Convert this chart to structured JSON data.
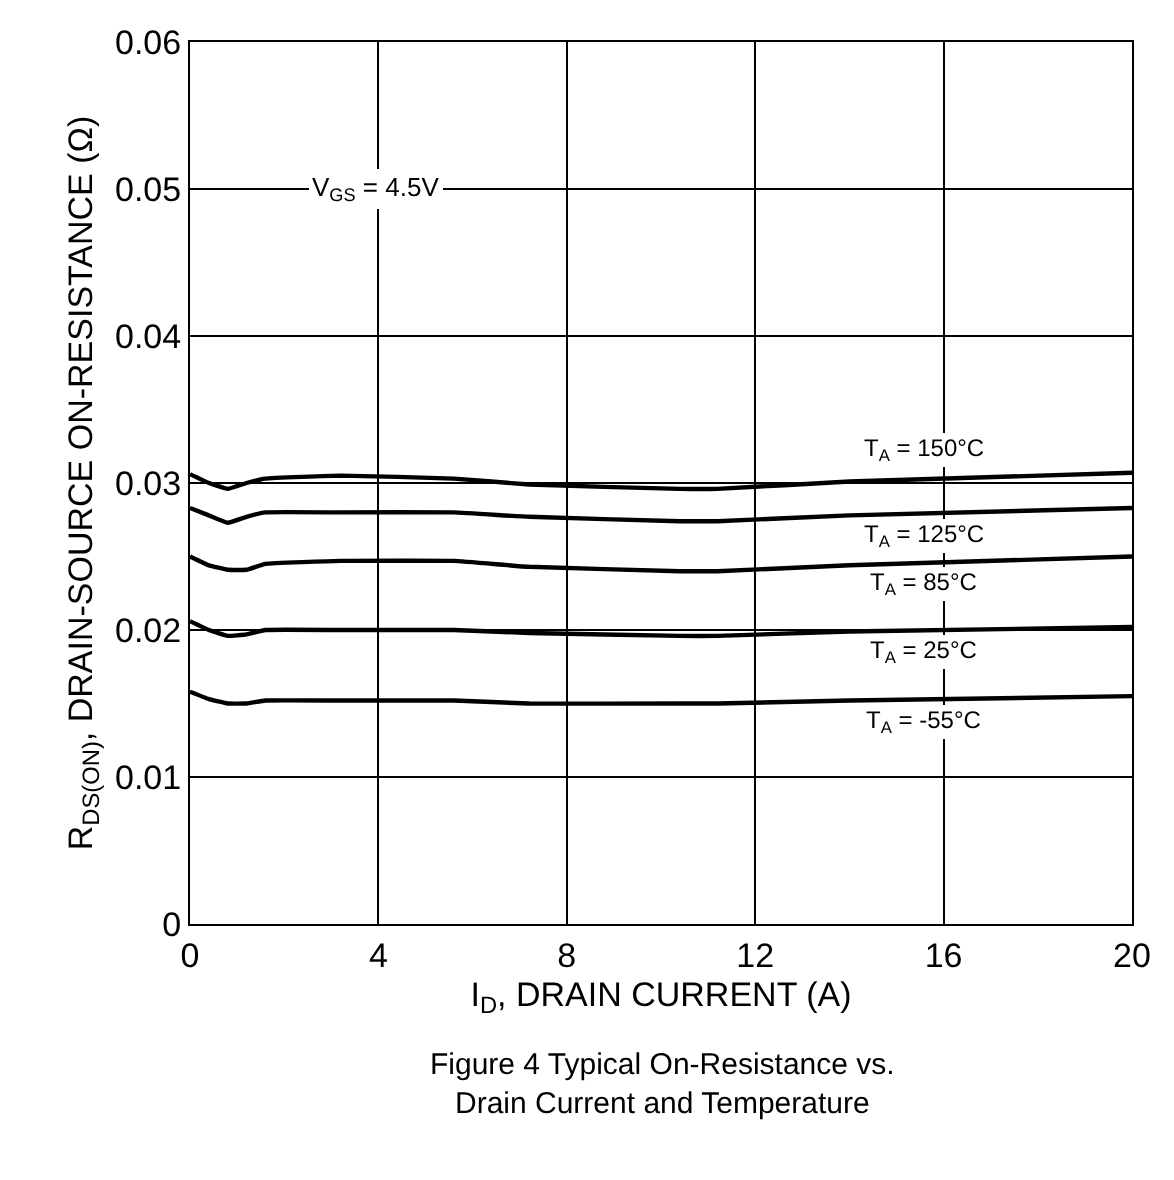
{
  "chart_data": {
    "type": "line",
    "title": "Figure 4 Typical On-Resistance vs.\nDrain Current and Temperature",
    "xlabel": "I$_{D}$, DRAIN CURRENT (A)",
    "ylabel": "R$_{DS(ON)}$, DRAIN-SOURCE ON-RESISTANCE (Ω)",
    "x": [
      0,
      0.4,
      0.8,
      1.2,
      1.6,
      3.2,
      5.6,
      7.2,
      10.4,
      11.2,
      14,
      20
    ],
    "series": [
      {
        "name": "T$_{A}$ = 150°C",
        "color": "#000000",
        "values": [
          0.0306,
          0.03,
          0.0296,
          0.03,
          0.0303,
          0.0305,
          0.0303,
          0.0299,
          0.0296,
          0.0296,
          0.0301,
          0.0307
        ]
      },
      {
        "name": "T$_{A}$ = 125°C",
        "color": "#000000",
        "values": [
          0.0283,
          0.0278,
          0.0273,
          0.0277,
          0.028,
          0.028,
          0.028,
          0.0277,
          0.0274,
          0.0274,
          0.0278,
          0.0283
        ]
      },
      {
        "name": "T$_{A}$ = 85°C",
        "color": "#000000",
        "values": [
          0.025,
          0.0244,
          0.0241,
          0.0241,
          0.0245,
          0.0247,
          0.0247,
          0.0243,
          0.024,
          0.024,
          0.0244,
          0.025
        ]
      },
      {
        "name": "T$_{A}$ = 25°C",
        "color": "#000000",
        "values": [
          0.0206,
          0.02,
          0.0196,
          0.0197,
          0.02,
          0.02,
          0.02,
          0.0198,
          0.0196,
          0.0196,
          0.0199,
          0.0202
        ]
      },
      {
        "name": "T$_{A}$ = -55°C",
        "color": "#000000",
        "values": [
          0.0158,
          0.0153,
          0.015,
          0.015,
          0.0152,
          0.0152,
          0.0152,
          0.015,
          0.015,
          0.015,
          0.0152,
          0.0155
        ]
      }
    ],
    "annotations": [
      "V$_{GS}$ = 4.5V"
    ],
    "xlim": [
      0,
      20
    ],
    "xticks": [
      0,
      4,
      8,
      12,
      16,
      20
    ],
    "ylim": [
      0,
      0.06
    ],
    "yticks": [
      0,
      0.01,
      0.02,
      0.03,
      0.04,
      0.05,
      0.06
    ],
    "grid": true,
    "legend": false,
    "marker": "none",
    "line_style": "solid"
  }
}
